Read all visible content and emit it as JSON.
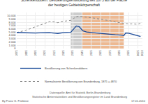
{
  "chart_data": {
    "type": "line",
    "title": "Schenkendöbern: Bevölkerungsentwicklung seit 1875 auf der Fläche\nder heutigen Gebietskörperschaft",
    "x": [
      1875,
      1880,
      1885,
      1890,
      1895,
      1900,
      1905,
      1910,
      1916,
      1919,
      1925,
      1933,
      1939,
      1942,
      1946,
      1950,
      1955,
      1960,
      1964,
      1971,
      1975,
      1981,
      1987,
      1990,
      1992,
      1995,
      2000,
      2005,
      2008
    ],
    "series": [
      {
        "name": "Bevölkerung von Schenkendöbern",
        "color": "#1a4a9a",
        "line_style": "solid",
        "values": [
          4870,
          4800,
          4750,
          4780,
          4750,
          4800,
          4820,
          4850,
          4700,
          4600,
          4850,
          4950,
          6900,
          6700,
          5400,
          5050,
          4900,
          4750,
          4650,
          4500,
          4400,
          4200,
          4100,
          3950,
          4750,
          4700,
          4300,
          3850,
          3700
        ]
      },
      {
        "name": "Normalisierte Bevölkerung von Brandenburg, 1875 = 4870",
        "color": "#888888",
        "line_style": "dotted",
        "values": [
          4870,
          5200,
          5600,
          6100,
          6600,
          7200,
          7700,
          8200,
          8100,
          7900,
          8300,
          8600,
          9700,
          9900,
          9700,
          9600,
          9400,
          9200,
          9000,
          8700,
          8500,
          8100,
          7900,
          7750,
          7700,
          7500,
          7500,
          7400,
          7700
        ]
      }
    ],
    "xlim": [
      1875,
      2010
    ],
    "xticks": [
      1875,
      1885,
      1895,
      1905,
      1915,
      1925,
      1935,
      1945,
      1955,
      1965,
      1975,
      1985,
      1995,
      2005,
      2010
    ],
    "ylim": [
      0,
      11000
    ],
    "yticks": [
      0,
      {
        "value": 1000,
        "label": "1.000"
      },
      {
        "value": 2000,
        "label": "2.000"
      },
      {
        "value": 3000,
        "label": "3.000"
      },
      {
        "value": 4000,
        "label": "4.000"
      },
      {
        "value": 5000,
        "label": "5.000"
      },
      {
        "value": 6000,
        "label": "6.000"
      },
      {
        "value": 7000,
        "label": "7.000"
      },
      {
        "value": 8000,
        "label": "8.000"
      },
      {
        "value": 9000,
        "label": "9.000"
      },
      {
        "value": 10000,
        "label": "10.000"
      }
    ],
    "spans": [
      {
        "start": 1933,
        "end": 1945,
        "color": "#c0c0c0"
      },
      {
        "start": 1945,
        "end": 1990,
        "color": "#e8a878"
      }
    ],
    "annotations": [
      "Datenquelle: Amt für Statistik Berlin-Brandenburg",
      "Statistische Ämterstatistiken und Bevölkerungsregister im Land Brandenburg",
      "By Franz G. Frieböse",
      "17.01.2010"
    ],
    "grid": true,
    "legend": "bottom"
  }
}
